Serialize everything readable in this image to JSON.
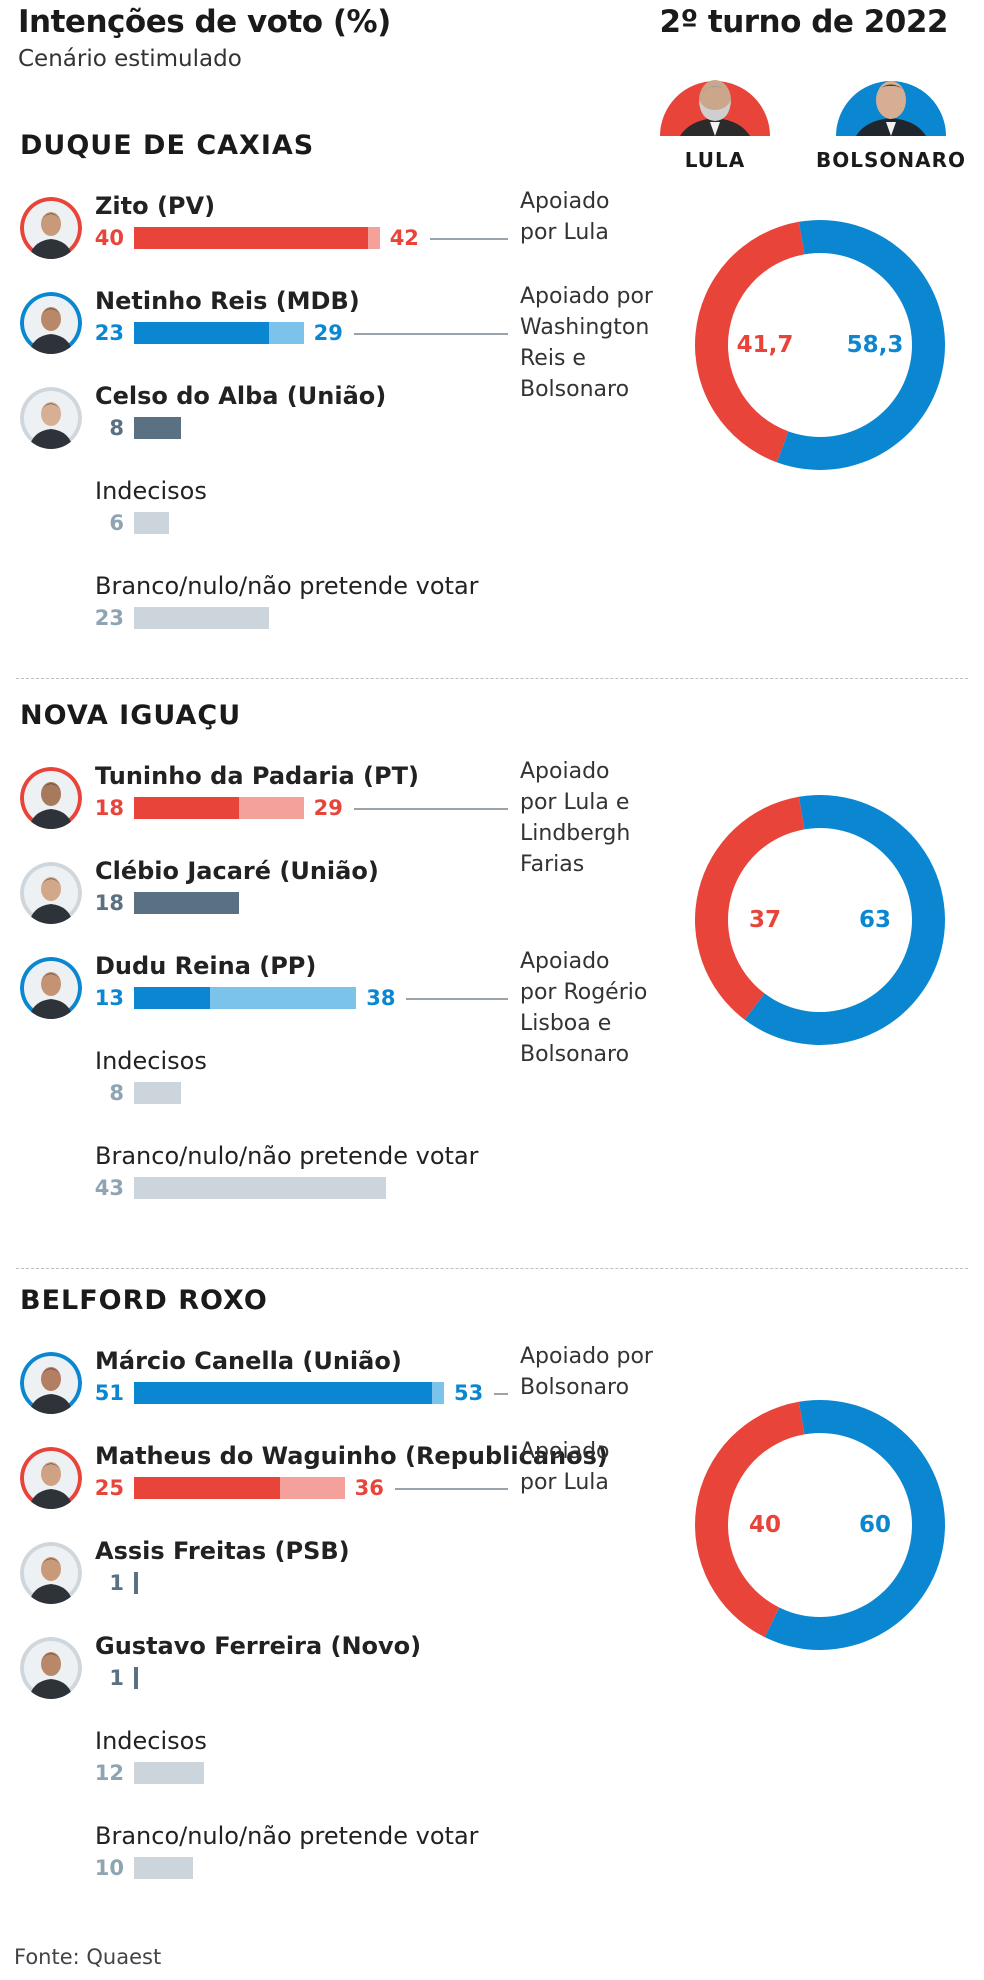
{
  "header": {
    "title": "Intenções de voto (%)",
    "subtitle": "Cenário estimulado",
    "turno_title": "2º turno de 2022",
    "candidates": [
      {
        "label": "LULA",
        "color": "#e8443a"
      },
      {
        "label": "BOLSONARO",
        "color": "#0a87d0"
      }
    ]
  },
  "colors": {
    "lula": "#e8443a",
    "lula_light": "#f4a19b",
    "bolsonaro": "#0a87d0",
    "bolsonaro_light": "#7bc3ea",
    "dark": "#5a7183",
    "gray": "#cdd5dc",
    "gray_text": "#8fa4b3"
  },
  "chart_data": [
    {
      "type": "bar",
      "title": "DUQUE DE CAXIAS",
      "rows": [
        {
          "name": "Zito (PV)",
          "value": 40,
          "value2": 42,
          "color": "lula",
          "note": "Apoiado\npor Lula"
        },
        {
          "name": "Netinho Reis (MDB)",
          "value": 23,
          "value2": 29,
          "color": "bolsonaro",
          "note": "Apoiado por\nWashington\nReis e\nBolsonaro"
        },
        {
          "name": "Celso do Alba (União)",
          "value": 8,
          "color": "dark"
        },
        {
          "name": "Indecisos",
          "value": 6,
          "color": "gray"
        },
        {
          "name": "Branco/nulo/não pretende votar",
          "value": 23,
          "color": "gray"
        }
      ],
      "donut": {
        "type": "pie",
        "labels": [
          "Lula",
          "Bolsonaro"
        ],
        "values": [
          41.7,
          58.3
        ],
        "value_labels": [
          "41,7",
          "58,3"
        ]
      }
    },
    {
      "type": "bar",
      "title": "NOVA IGUAÇU",
      "rows": [
        {
          "name": "Tuninho da Padaria (PT)",
          "value": 18,
          "value2": 29,
          "color": "lula",
          "note": "Apoiado\npor Lula e\nLindbergh\nFarias"
        },
        {
          "name": "Clébio Jacaré (União)",
          "value": 18,
          "color": "dark"
        },
        {
          "name": "Dudu Reina (PP)",
          "value": 13,
          "value2": 38,
          "color": "bolsonaro",
          "note": "Apoiado\npor Rogério\nLisboa e\nBolsonaro"
        },
        {
          "name": "Indecisos",
          "value": 8,
          "color": "gray"
        },
        {
          "name": "Branco/nulo/não pretende votar",
          "value": 43,
          "color": "gray"
        }
      ],
      "donut": {
        "type": "pie",
        "labels": [
          "Lula",
          "Bolsonaro"
        ],
        "values": [
          37,
          63
        ],
        "value_labels": [
          "37",
          "63"
        ]
      }
    },
    {
      "type": "bar",
      "title": "BELFORD ROXO",
      "rows": [
        {
          "name": "Márcio Canella (União)",
          "value": 51,
          "value2": 53,
          "color": "bolsonaro",
          "note": "Apoiado por\nBolsonaro"
        },
        {
          "name": "Matheus do Waguinho (Republicanos)",
          "value": 25,
          "value2": 36,
          "color": "lula",
          "note": "Apoiado\npor Lula"
        },
        {
          "name": "Assis Freitas (PSB)",
          "value": 1,
          "color": "dark"
        },
        {
          "name": "Gustavo Ferreira (Novo)",
          "value": 1,
          "color": "dark"
        },
        {
          "name": "Indecisos",
          "value": 12,
          "color": "gray"
        },
        {
          "name": "Branco/nulo/não pretende votar",
          "value": 10,
          "color": "gray"
        }
      ],
      "donut": {
        "type": "pie",
        "labels": [
          "Lula",
          "Bolsonaro"
        ],
        "values": [
          40,
          60
        ],
        "value_labels": [
          "40",
          "60"
        ]
      }
    }
  ],
  "source": "Fonte: Quaest"
}
